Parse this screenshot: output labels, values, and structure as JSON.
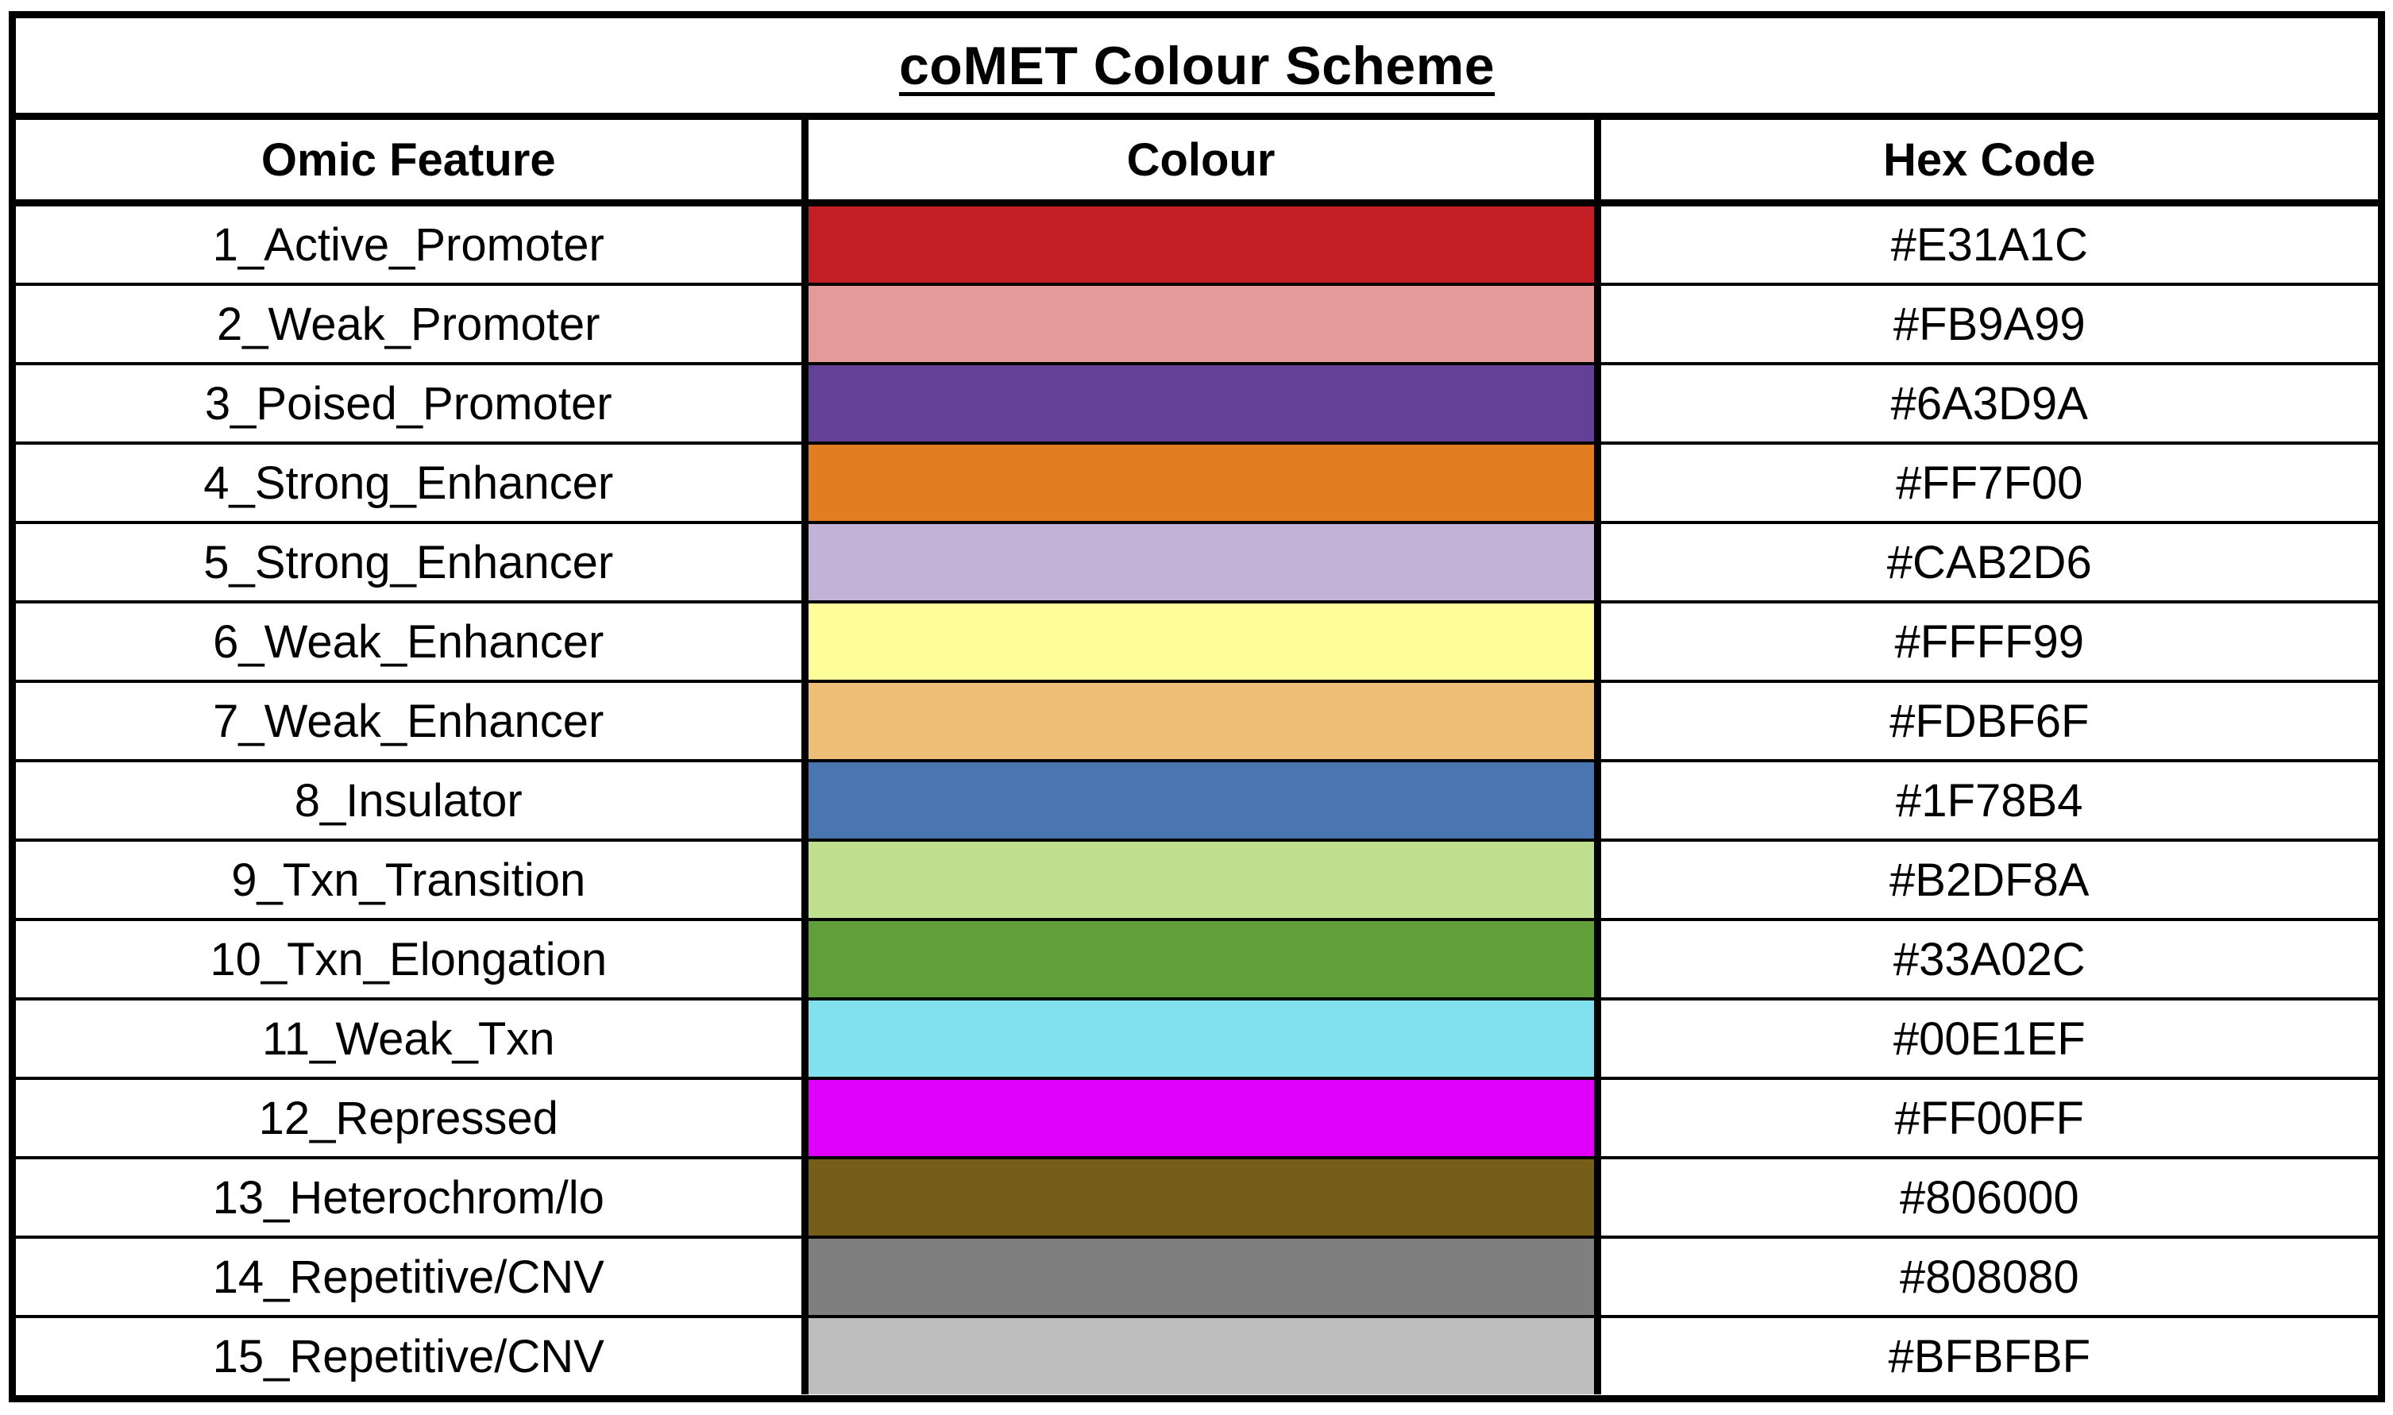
{
  "title": "coMET Colour Scheme",
  "headers": {
    "feature": "Omic Feature",
    "colour": "Colour",
    "hex": "Hex Code"
  },
  "rows": [
    {
      "feature": "1_Active_Promoter",
      "hex": "#E31A1C",
      "swatch_color": "#C41F24"
    },
    {
      "feature": "2_Weak_Promoter",
      "hex": "#FB9A99",
      "swatch_color": "#E49A99"
    },
    {
      "feature": "3_Poised_Promoter",
      "hex": "#6A3D9A",
      "swatch_color": "#624196"
    },
    {
      "feature": "4_Strong_Enhancer",
      "hex": "#FF7F00",
      "swatch_color": "#E27E21"
    },
    {
      "feature": "5_Strong_Enhancer",
      "hex": "#CAB2D6",
      "swatch_color": "#C4B2D6"
    },
    {
      "feature": "6_Weak_Enhancer",
      "hex": "#FFFF99",
      "swatch_color": "#FDFD9A"
    },
    {
      "feature": "7_Weak_Enhancer",
      "hex": "#FDBF6F",
      "swatch_color": "#EDBE76"
    },
    {
      "feature": "8_Insulator",
      "hex": "#1F78B4",
      "swatch_color": "#4976B1"
    },
    {
      "feature": "9_Txn_Transition",
      "hex": "#B2DF8A",
      "swatch_color": "#C0DF8F"
    },
    {
      "feature": "10_Txn_Elongation",
      "hex": "#33A02C",
      "swatch_color": "#619F3B"
    },
    {
      "feature": "11_Weak_Txn",
      "hex": "#00E1EF",
      "swatch_color": "#82E1EE"
    },
    {
      "feature": "12_Repressed",
      "hex": "#FF00FF",
      "swatch_color": "#DE00FB"
    },
    {
      "feature": "13_Heterochrom/lo",
      "hex": "#806000",
      "swatch_color": "#755E17"
    },
    {
      "feature": "14_Repetitive/CNV",
      "hex": "#808080",
      "swatch_color": "#7F7F7F"
    },
    {
      "feature": "15_Repetitive/CNV",
      "hex": "#BFBFBF",
      "swatch_color": "#BEBEBE"
    }
  ]
}
